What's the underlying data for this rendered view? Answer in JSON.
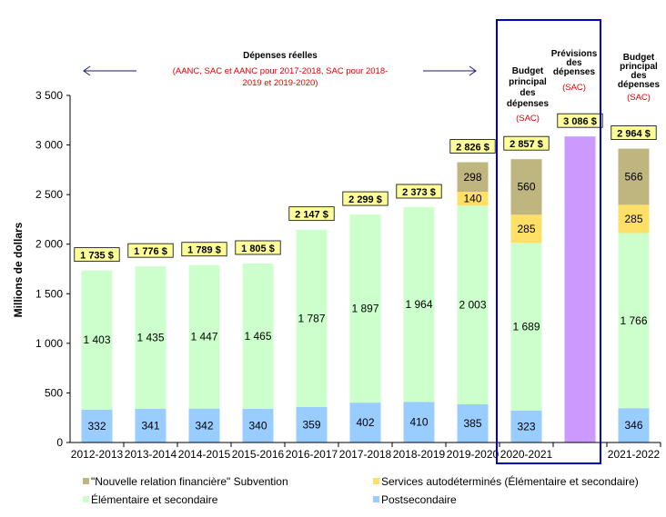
{
  "chart_data": {
    "type": "bar",
    "stacked": true,
    "ylabel": "Millions de dollars",
    "ylim": [
      0,
      3500
    ],
    "yticks": [
      "0",
      "500",
      "1 000",
      "1 500",
      "2 000",
      "2 500",
      "3 000",
      "3 500"
    ],
    "categories": [
      "2012-2013",
      "2013-2014",
      "2014-2015",
      "2015-2016",
      "2016-2017",
      "2017-2018",
      "2018-2019",
      "2019-2020",
      "2020-2021",
      "",
      "2021-2022"
    ],
    "series": [
      {
        "name": "Postsecondaire",
        "color": "#99ccff",
        "values": [
          332,
          341,
          342,
          340,
          359,
          402,
          410,
          385,
          323,
          null,
          346
        ],
        "labels": [
          "332",
          "341",
          "342",
          "340",
          "359",
          "402",
          "410",
          "385",
          "323",
          "",
          "346"
        ]
      },
      {
        "name": "Élémentaire et secondaire",
        "color": "#ccffcc",
        "values": [
          1403,
          1435,
          1447,
          1465,
          1787,
          1897,
          1964,
          2003,
          1689,
          null,
          1766
        ],
        "labels": [
          "1 403",
          "1 435",
          "1 447",
          "1 465",
          "1 787",
          "1 897",
          "1 964",
          "2 003",
          "1 689",
          "",
          "1 766"
        ]
      },
      {
        "name": "Services autodéterminés (Élémentaire et secondaire)",
        "color": "#ffe066",
        "values": [
          null,
          null,
          null,
          null,
          null,
          null,
          null,
          140,
          285,
          null,
          285
        ],
        "labels": [
          "",
          "",
          "",
          "",
          "",
          "",
          "",
          "140",
          "285",
          "",
          "285"
        ]
      },
      {
        "name": "\"Nouvelle relation financière\" Subvention",
        "color": "#bfb57f",
        "values": [
          null,
          null,
          null,
          null,
          null,
          null,
          null,
          298,
          560,
          null,
          566
        ],
        "labels": [
          "",
          "",
          "",
          "",
          "",
          "",
          "",
          "298",
          "560",
          "",
          "566"
        ]
      },
      {
        "name": "Prévisions des dépenses",
        "color": "#cc99ff",
        "values": [
          null,
          null,
          null,
          null,
          null,
          null,
          null,
          null,
          null,
          3086,
          null
        ],
        "labels": [
          "",
          "",
          "",
          "",
          "",
          "",
          "",
          "",
          "",
          "",
          ""
        ]
      }
    ],
    "totals": [
      1735,
      1776,
      1789,
      1805,
      2147,
      2299,
      2373,
      2826,
      2857,
      3086,
      2964
    ],
    "total_labels": [
      "1 735 $",
      "1 776 $",
      "1 789 $",
      "1 805 $",
      "2 147 $",
      "2 299 $",
      "2 373 $",
      "2 826 $",
      "2 857 $",
      "3 086 $",
      "2 964 $"
    ],
    "legend": [
      {
        "label": "\"Nouvelle relation financière\" Subvention",
        "color": "#bfb57f"
      },
      {
        "label": "Services autodéterminés (Élémentaire et secondaire)",
        "color": "#ffe066"
      },
      {
        "label": "Élémentaire et secondaire",
        "color": "#ccffcc"
      },
      {
        "label": "Postsecondaire",
        "color": "#99ccff"
      }
    ],
    "annotations": {
      "actual_title": "Dépenses réelles",
      "actual_sub1": "(AANC, SAC et AANC pour  2017-2018, SAC pour 2018-",
      "actual_sub2": "2019 et 2019-2020)",
      "main_est_2020": [
        "Budget",
        "principal",
        "des",
        "dépenses"
      ],
      "forecast": [
        "Prévisions",
        "des",
        "dépenses"
      ],
      "main_est_2021": [
        "Budget",
        "principal",
        "des",
        "dépenses"
      ],
      "sac": "(SAC)"
    },
    "colors": {
      "total_box": "#ffff99",
      "highlight_frame": "#0000cc"
    }
  }
}
